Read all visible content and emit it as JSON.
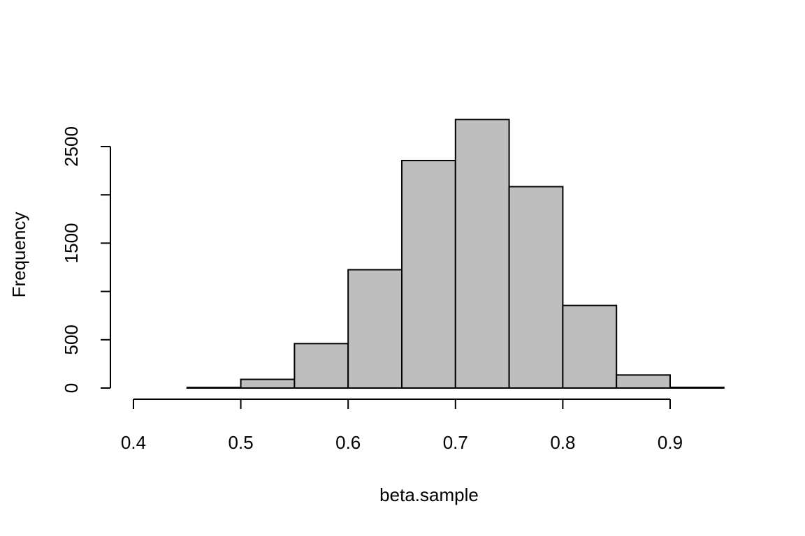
{
  "chart_data": {
    "type": "bar",
    "title": "",
    "xlabel": "beta.sample",
    "ylabel": "Frequency",
    "bin_edges": [
      0.4,
      0.45,
      0.5,
      0.55,
      0.6,
      0.65,
      0.7,
      0.75,
      0.8,
      0.85,
      0.9,
      0.95
    ],
    "values": [
      0,
      6,
      90,
      460,
      1225,
      2355,
      2780,
      2085,
      855,
      135,
      7
    ],
    "xlim": [
      0.4,
      0.95
    ],
    "ylim": [
      0,
      2800
    ],
    "x_ticks": [
      0.4,
      0.5,
      0.6,
      0.7,
      0.8,
      0.9
    ],
    "x_tick_labels": [
      "0.4",
      "0.5",
      "0.6",
      "0.7",
      "0.8",
      "0.9"
    ],
    "y_ticks": [
      0,
      500,
      1000,
      1500,
      2000,
      2500
    ],
    "y_tick_labels": [
      "0",
      "500",
      "",
      "1500",
      "",
      "2500"
    ],
    "grid": false,
    "legend": "none",
    "bar_color": "#bebebe",
    "edge_color": "#000000"
  }
}
